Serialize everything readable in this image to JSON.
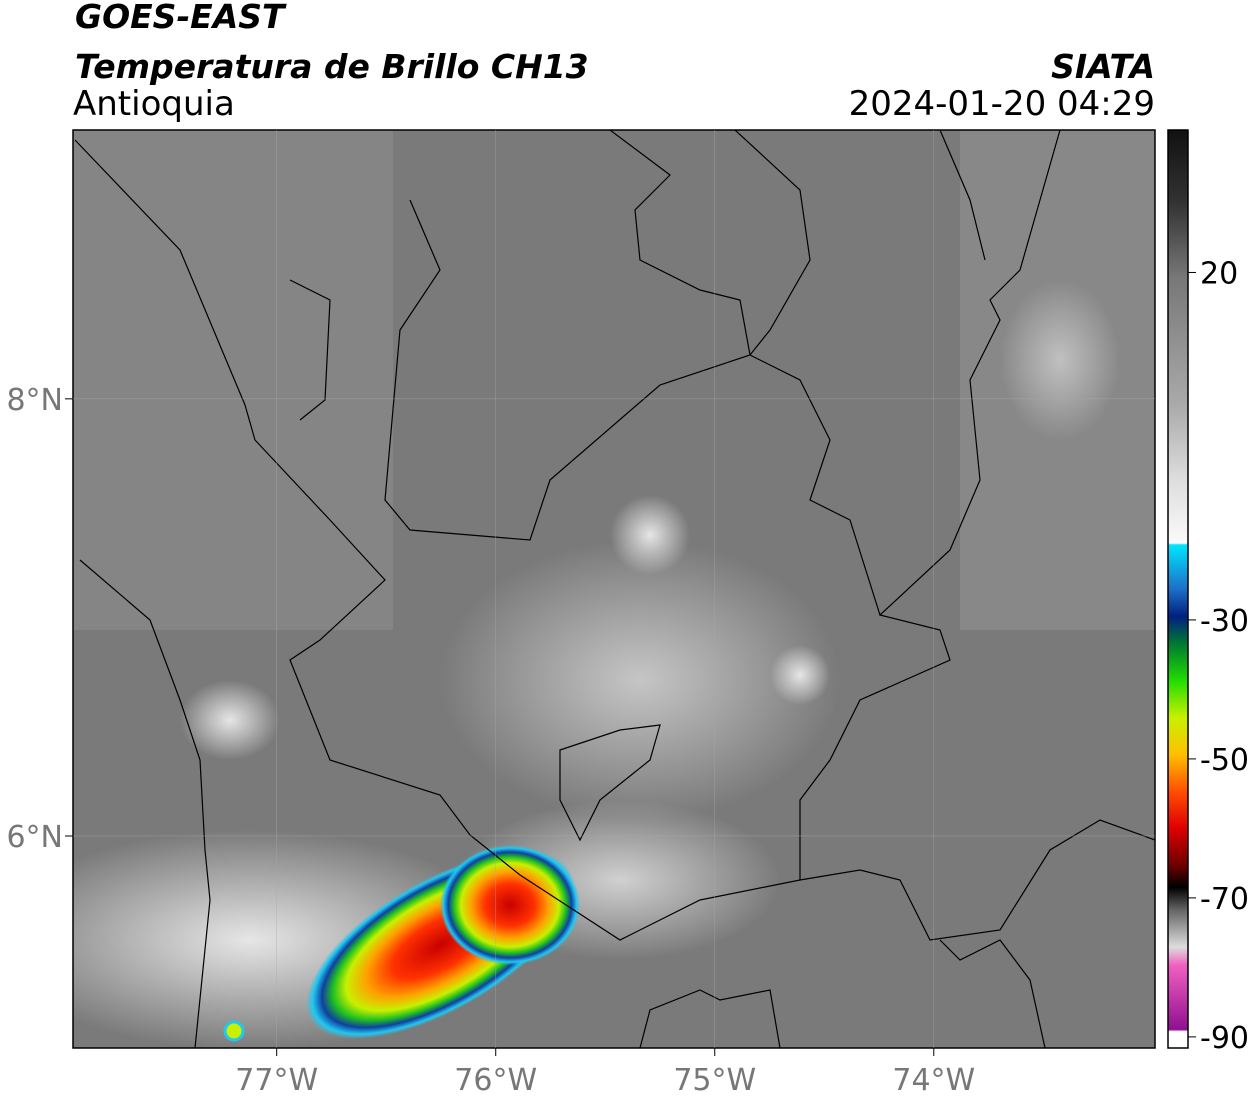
{
  "header": {
    "title": "GOES-EAST",
    "subtitle": "Temperatura de Brillo CH13",
    "region": "Antioquia",
    "source": "SIATA",
    "datetime": "2024-01-20 04:29"
  },
  "map": {
    "xlim": [
      -77.93,
      -72.99
    ],
    "ylim": [
      5.03,
      9.23
    ],
    "xticks": [
      {
        "value": -77,
        "label": "77°W"
      },
      {
        "value": -76,
        "label": "76°W"
      },
      {
        "value": -75,
        "label": "75°W"
      },
      {
        "value": -74,
        "label": "74°W"
      }
    ],
    "yticks": [
      {
        "value": 8,
        "label": "8°N"
      },
      {
        "value": 6,
        "label": "6°N"
      }
    ],
    "grid": true
  },
  "colorbar": {
    "lim": [
      -91.6,
      40.5
    ],
    "ticks": [
      20,
      -30,
      -50,
      -70,
      -90
    ]
  }
}
